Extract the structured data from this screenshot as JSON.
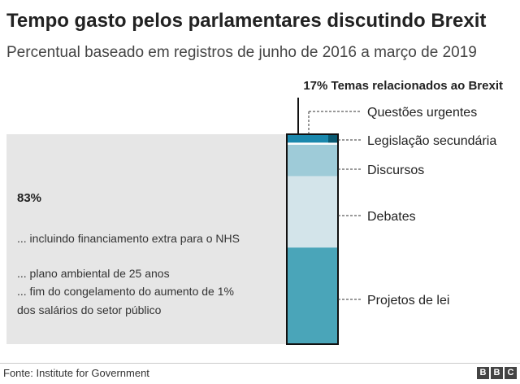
{
  "title": "Tempo gasto pelos parlamentares discutindo Brexit",
  "subtitle": "Percentual baseado em registros de junho de 2016 a março de 2019",
  "chart_data": {
    "type": "bar",
    "stacked": true,
    "left_block": {
      "value_label": "83%",
      "notes": [
        "... incluindo financiamento extra para o NHS",
        "... plano ambiental de 25 anos",
        "... fim do congelamento do aumento de 1%",
        "dos salários do setor público"
      ]
    },
    "brexit_label": "17% Temas relacionados ao Brexit",
    "segments": [
      {
        "name": "Questões urgentes",
        "share": 0.04,
        "color": "#1a88ad"
      },
      {
        "name": "Legislação secundária",
        "share": 0.01,
        "color": "#0a5a72"
      },
      {
        "name": "Discursos",
        "share": 0.15,
        "color": "#9ecbd8"
      },
      {
        "name": "Debates",
        "share": 0.34,
        "color": "#d3e4ea"
      },
      {
        "name": "Projetos de lei",
        "share": 0.46,
        "color": "#4aa5b9"
      }
    ],
    "colors": {
      "non_brexit": "#e6e6e6",
      "frame": "#111111"
    }
  },
  "source": "Fonte: Institute for Government",
  "logo": [
    "B",
    "B",
    "C"
  ]
}
